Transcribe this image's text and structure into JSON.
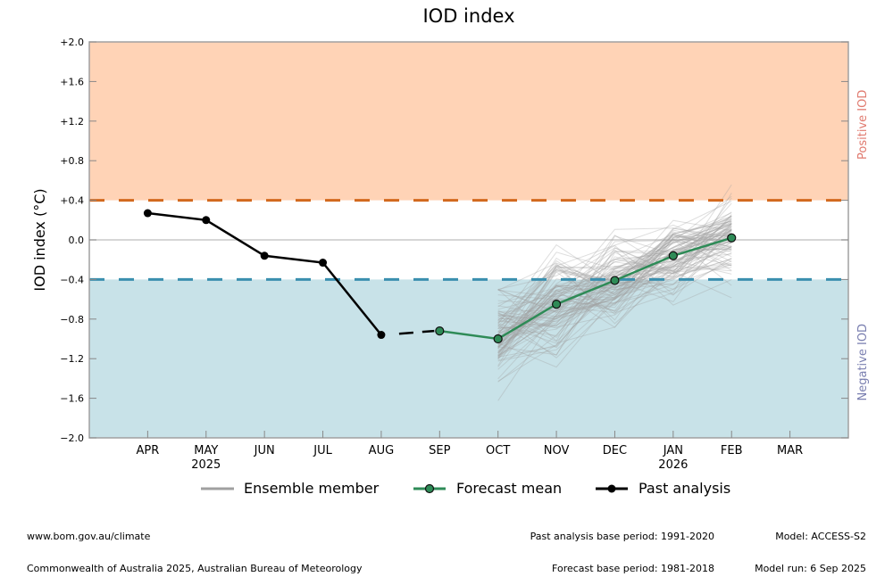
{
  "chart_data": {
    "type": "line",
    "title": "IOD index",
    "xlabel": "",
    "ylabel": "IOD index (°C)",
    "ylim": [
      -2.0,
      2.0
    ],
    "yticks": [
      {
        "value": 2.0,
        "label": "+2.0"
      },
      {
        "value": 1.6,
        "label": "+1.6"
      },
      {
        "value": 1.2,
        "label": "+1.2"
      },
      {
        "value": 0.8,
        "label": "+0.8"
      },
      {
        "value": 0.4,
        "label": "+0.4"
      },
      {
        "value": 0.0,
        "label": "0.0"
      },
      {
        "value": -0.4,
        "label": "−0.4"
      },
      {
        "value": -0.8,
        "label": "−0.8"
      },
      {
        "value": -1.2,
        "label": "−1.2"
      },
      {
        "value": -1.6,
        "label": "−1.6"
      },
      {
        "value": -2.0,
        "label": "−2.0"
      }
    ],
    "categories": [
      "APR",
      "MAY",
      "JUN",
      "JUL",
      "AUG",
      "SEP",
      "OCT",
      "NOV",
      "DEC",
      "JAN",
      "FEB",
      "MAR"
    ],
    "year_labels": [
      {
        "category": "MAY",
        "label": "2025"
      },
      {
        "category": "JAN",
        "label": "2026"
      }
    ],
    "thresholds": {
      "positive": {
        "value": 0.4,
        "color": "#d2691e",
        "fill": "#ffd3b6",
        "label": "Positive IOD",
        "label_color": "#e07a6f"
      },
      "negative": {
        "value": -0.4,
        "color": "#3a8fae",
        "fill": "#c8e2e8",
        "label": "Negative IOD",
        "label_color": "#7a7fb0"
      }
    },
    "series": [
      {
        "name": "Past analysis",
        "color": "#000000",
        "categories": [
          "APR",
          "MAY",
          "JUN",
          "JUL",
          "AUG"
        ],
        "values": [
          0.27,
          0.2,
          -0.16,
          -0.23,
          -0.96
        ]
      },
      {
        "name": "Forecast mean",
        "color": "#2e8b57",
        "categories": [
          "SEP",
          "OCT",
          "NOV",
          "DEC",
          "JAN",
          "FEB"
        ],
        "values": [
          -0.92,
          -1.0,
          -0.65,
          -0.41,
          -0.16,
          0.02
        ]
      },
      {
        "name": "Ensemble member",
        "color": "#a0a0a0",
        "categories": [
          "OCT",
          "NOV",
          "DEC",
          "JAN",
          "FEB"
        ],
        "member_count": 99,
        "range_min": [
          -1.72,
          -1.3,
          -0.95,
          -0.7,
          -0.7
        ],
        "range_max": [
          -0.5,
          0.02,
          0.22,
          0.42,
          0.62
        ]
      }
    ],
    "gap_connector": {
      "from": "AUG",
      "to": "SEP",
      "style": "dashed"
    },
    "legend": {
      "placement": "bottom-center",
      "items": [
        "Ensemble member",
        "Forecast mean",
        "Past analysis"
      ]
    },
    "grid": false
  },
  "footer": {
    "left_line1": "www.bom.gov.au/climate",
    "left_line2": "Commonwealth of Australia 2025, Australian Bureau of Meteorology",
    "mid_line1": "Past analysis base period: 1991-2020",
    "mid_line2": "Forecast base period: 1981-2018",
    "right_line1": "Model: ACCESS-S2",
    "right_line2": "Model run: 6 Sep 2025"
  }
}
